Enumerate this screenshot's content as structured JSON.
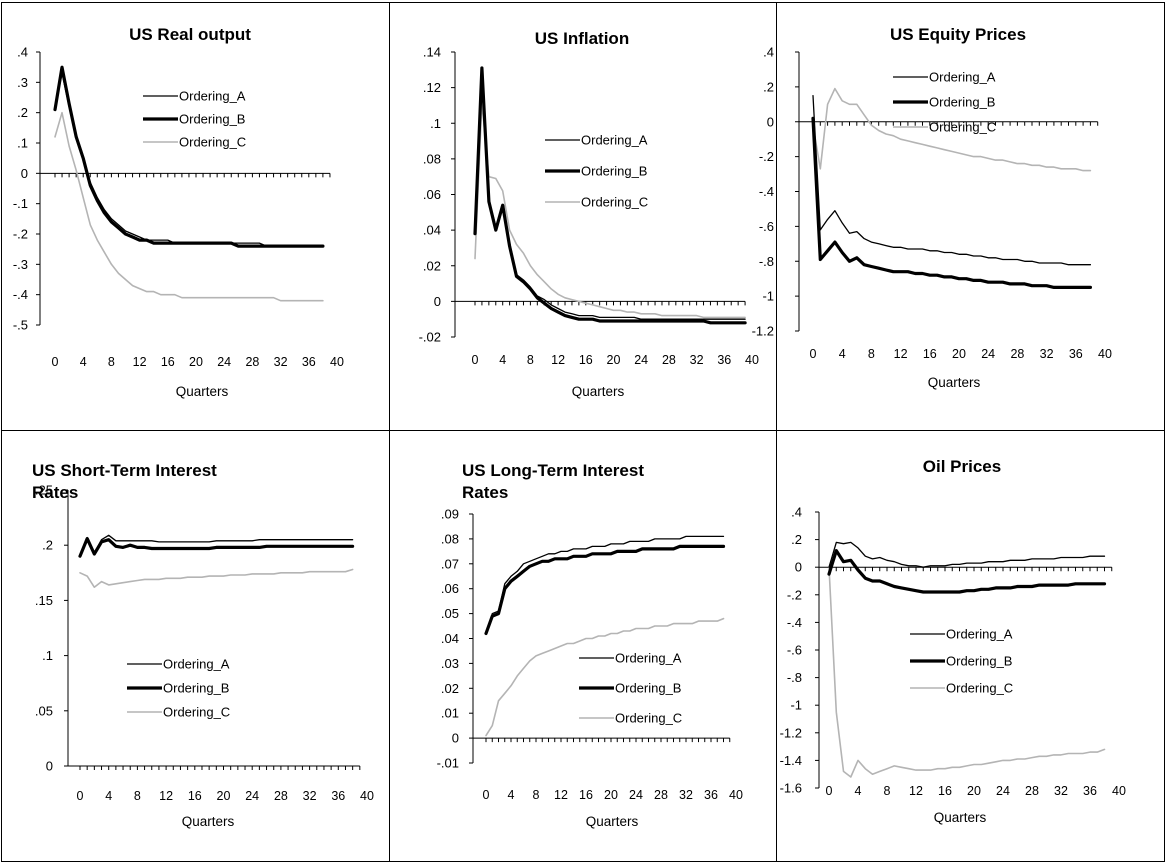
{
  "chart_data": [
    {
      "type": "line",
      "title": "US Real output",
      "xlabel": "Quarters",
      "ylabel": "",
      "ylim": [
        -0.5,
        0.4
      ],
      "yticks": [
        0.4,
        0.3,
        0.2,
        0.1,
        0,
        -0.1,
        -0.2,
        -0.3,
        -0.4,
        -0.5
      ],
      "xticks": [
        0,
        4,
        8,
        12,
        16,
        20,
        24,
        28,
        32,
        36,
        40
      ],
      "legend": "top-right",
      "series": [
        {
          "name": "Ordering_A",
          "color": "#000000",
          "values": [
            0.21,
            0.33,
            0.22,
            0.12,
            0.05,
            -0.03,
            -0.08,
            -0.12,
            -0.15,
            -0.17,
            -0.19,
            -0.2,
            -0.21,
            -0.22,
            -0.22,
            -0.22,
            -0.22,
            -0.23,
            -0.23,
            -0.23,
            -0.23,
            -0.23,
            -0.23,
            -0.23,
            -0.23,
            -0.23,
            -0.23,
            -0.23,
            -0.23,
            -0.23,
            -0.24,
            -0.24,
            -0.24,
            -0.24,
            -0.24,
            -0.24,
            -0.24,
            -0.24,
            -0.24
          ]
        },
        {
          "name": "Ordering_B",
          "color": "#000000",
          "values": [
            0.21,
            0.35,
            0.23,
            0.12,
            0.05,
            -0.04,
            -0.09,
            -0.13,
            -0.16,
            -0.18,
            -0.2,
            -0.21,
            -0.22,
            -0.22,
            -0.23,
            -0.23,
            -0.23,
            -0.23,
            -0.23,
            -0.23,
            -0.23,
            -0.23,
            -0.23,
            -0.23,
            -0.23,
            -0.23,
            -0.24,
            -0.24,
            -0.24,
            -0.24,
            -0.24,
            -0.24,
            -0.24,
            -0.24,
            -0.24,
            -0.24,
            -0.24,
            -0.24,
            -0.24
          ]
        },
        {
          "name": "Ordering_C",
          "color": "#b4b4b4",
          "values": [
            0.12,
            0.2,
            0.09,
            0.01,
            -0.08,
            -0.17,
            -0.22,
            -0.26,
            -0.3,
            -0.33,
            -0.35,
            -0.37,
            -0.38,
            -0.39,
            -0.39,
            -0.4,
            -0.4,
            -0.4,
            -0.41,
            -0.41,
            -0.41,
            -0.41,
            -0.41,
            -0.41,
            -0.41,
            -0.41,
            -0.41,
            -0.41,
            -0.41,
            -0.41,
            -0.41,
            -0.41,
            -0.42,
            -0.42,
            -0.42,
            -0.42,
            -0.42,
            -0.42,
            -0.42
          ]
        }
      ]
    },
    {
      "type": "line",
      "title": "US Inflation",
      "xlabel": "Quarters",
      "ylabel": "",
      "ylim": [
        -0.02,
        0.14
      ],
      "yticks": [
        0.14,
        0.12,
        0.1,
        0.08,
        0.06,
        0.04,
        0.02,
        0,
        -0.02
      ],
      "xticks": [
        0,
        4,
        8,
        12,
        16,
        20,
        24,
        28,
        32,
        36,
        40
      ],
      "legend": "right",
      "series": [
        {
          "name": "Ordering_A",
          "color": "#000000",
          "values": [
            0.038,
            0.128,
            0.057,
            0.042,
            0.053,
            0.033,
            0.015,
            0.012,
            0.008,
            0.003,
            0.001,
            -0.002,
            -0.004,
            -0.006,
            -0.007,
            -0.008,
            -0.008,
            -0.008,
            -0.009,
            -0.009,
            -0.009,
            -0.009,
            -0.009,
            -0.009,
            -0.01,
            -0.01,
            -0.01,
            -0.01,
            -0.01,
            -0.01,
            -0.01,
            -0.01,
            -0.01,
            -0.01,
            -0.01,
            -0.01,
            -0.01,
            -0.01,
            -0.01,
            -0.01
          ]
        },
        {
          "name": "Ordering_B",
          "color": "#000000",
          "values": [
            0.038,
            0.131,
            0.056,
            0.04,
            0.054,
            0.031,
            0.014,
            0.011,
            0.007,
            0.002,
            -0.001,
            -0.004,
            -0.006,
            -0.008,
            -0.009,
            -0.01,
            -0.01,
            -0.01,
            -0.011,
            -0.011,
            -0.011,
            -0.011,
            -0.011,
            -0.011,
            -0.011,
            -0.011,
            -0.011,
            -0.011,
            -0.011,
            -0.011,
            -0.011,
            -0.011,
            -0.011,
            -0.011,
            -0.012,
            -0.012,
            -0.012,
            -0.012,
            -0.012,
            -0.012
          ]
        },
        {
          "name": "Ordering_C",
          "color": "#b4b4b4",
          "values": [
            0.024,
            0.112,
            0.07,
            0.069,
            0.062,
            0.04,
            0.032,
            0.027,
            0.02,
            0.015,
            0.011,
            0.007,
            0.004,
            0.002,
            0.001,
            0.0,
            -0.001,
            -0.002,
            -0.003,
            -0.004,
            -0.005,
            -0.005,
            -0.006,
            -0.006,
            -0.007,
            -0.007,
            -0.007,
            -0.008,
            -0.008,
            -0.008,
            -0.008,
            -0.008,
            -0.008,
            -0.009,
            -0.009,
            -0.009,
            -0.009,
            -0.009,
            -0.009,
            -0.009
          ]
        }
      ]
    },
    {
      "type": "line",
      "title": "US Equity Prices",
      "xlabel": "Quarters",
      "ylabel": "",
      "ylim": [
        -1.2,
        0.4
      ],
      "yticks": [
        0.4,
        0.2,
        0,
        -0.2,
        -0.4,
        -0.6,
        -0.8,
        -1,
        -1.2
      ],
      "xticks": [
        0,
        4,
        8,
        12,
        16,
        20,
        24,
        28,
        32,
        36,
        40
      ],
      "legend": "top-right",
      "series": [
        {
          "name": "Ordering_A",
          "color": "#000000",
          "values": [
            0.15,
            -0.62,
            -0.56,
            -0.51,
            -0.58,
            -0.64,
            -0.63,
            -0.67,
            -0.69,
            -0.7,
            -0.71,
            -0.72,
            -0.72,
            -0.73,
            -0.73,
            -0.73,
            -0.74,
            -0.74,
            -0.75,
            -0.75,
            -0.76,
            -0.76,
            -0.77,
            -0.77,
            -0.78,
            -0.78,
            -0.79,
            -0.79,
            -0.79,
            -0.8,
            -0.8,
            -0.81,
            -0.81,
            -0.81,
            -0.81,
            -0.82,
            -0.82,
            -0.82,
            -0.82
          ]
        },
        {
          "name": "Ordering_B",
          "color": "#000000",
          "values": [
            0.02,
            -0.79,
            -0.74,
            -0.69,
            -0.75,
            -0.8,
            -0.78,
            -0.82,
            -0.83,
            -0.84,
            -0.85,
            -0.86,
            -0.86,
            -0.86,
            -0.87,
            -0.87,
            -0.88,
            -0.88,
            -0.89,
            -0.89,
            -0.9,
            -0.9,
            -0.91,
            -0.91,
            -0.92,
            -0.92,
            -0.92,
            -0.93,
            -0.93,
            -0.93,
            -0.94,
            -0.94,
            -0.94,
            -0.95,
            -0.95,
            -0.95,
            -0.95,
            -0.95,
            -0.95
          ]
        },
        {
          "name": "Ordering_C",
          "color": "#b4b4b4",
          "values": [
            -0.02,
            -0.27,
            0.1,
            0.19,
            0.12,
            0.1,
            0.1,
            0.04,
            -0.02,
            -0.05,
            -0.07,
            -0.08,
            -0.1,
            -0.11,
            -0.12,
            -0.13,
            -0.14,
            -0.15,
            -0.16,
            -0.17,
            -0.18,
            -0.19,
            -0.2,
            -0.2,
            -0.21,
            -0.22,
            -0.22,
            -0.23,
            -0.24,
            -0.24,
            -0.25,
            -0.25,
            -0.26,
            -0.26,
            -0.27,
            -0.27,
            -0.27,
            -0.28,
            -0.28
          ]
        }
      ]
    },
    {
      "type": "line",
      "title": "US Short-Term Interest Rates",
      "xlabel": "Quarters",
      "ylabel": "",
      "ylim": [
        0,
        0.25
      ],
      "yticks": [
        0.25,
        0.2,
        0.15,
        0.1,
        0.05,
        0
      ],
      "xticks": [
        0,
        4,
        8,
        12,
        16,
        20,
        24,
        28,
        32,
        36,
        40
      ],
      "legend": "bottom-right",
      "series": [
        {
          "name": "Ordering_A",
          "color": "#000000",
          "values": [
            0.19,
            0.207,
            0.193,
            0.205,
            0.209,
            0.204,
            0.204,
            0.204,
            0.204,
            0.204,
            0.204,
            0.203,
            0.203,
            0.203,
            0.203,
            0.203,
            0.203,
            0.203,
            0.203,
            0.204,
            0.204,
            0.204,
            0.204,
            0.204,
            0.204,
            0.205,
            0.205,
            0.205,
            0.205,
            0.205,
            0.205,
            0.205,
            0.205,
            0.205,
            0.205,
            0.205,
            0.205,
            0.205,
            0.205
          ]
        },
        {
          "name": "Ordering_B",
          "color": "#000000",
          "values": [
            0.19,
            0.206,
            0.192,
            0.203,
            0.205,
            0.199,
            0.198,
            0.2,
            0.198,
            0.198,
            0.197,
            0.197,
            0.197,
            0.197,
            0.197,
            0.197,
            0.197,
            0.197,
            0.197,
            0.198,
            0.198,
            0.198,
            0.198,
            0.198,
            0.198,
            0.198,
            0.199,
            0.199,
            0.199,
            0.199,
            0.199,
            0.199,
            0.199,
            0.199,
            0.199,
            0.199,
            0.199,
            0.199,
            0.199
          ]
        },
        {
          "name": "Ordering_C",
          "color": "#b4b4b4",
          "values": [
            0.175,
            0.172,
            0.162,
            0.167,
            0.164,
            0.165,
            0.166,
            0.167,
            0.168,
            0.169,
            0.169,
            0.169,
            0.17,
            0.17,
            0.17,
            0.171,
            0.171,
            0.171,
            0.172,
            0.172,
            0.172,
            0.173,
            0.173,
            0.173,
            0.174,
            0.174,
            0.174,
            0.174,
            0.175,
            0.175,
            0.175,
            0.175,
            0.176,
            0.176,
            0.176,
            0.176,
            0.176,
            0.176,
            0.178
          ]
        }
      ]
    },
    {
      "type": "line",
      "title": "US Long-Term Interest Rates",
      "xlabel": "Quarters",
      "ylabel": "",
      "ylim": [
        -0.01,
        0.09
      ],
      "yticks": [
        0.09,
        0.08,
        0.07,
        0.06,
        0.05,
        0.04,
        0.03,
        0.02,
        0.01,
        0,
        -0.01
      ],
      "xticks": [
        0,
        4,
        8,
        12,
        16,
        20,
        24,
        28,
        32,
        36,
        40
      ],
      "legend": "right",
      "series": [
        {
          "name": "Ordering_A",
          "color": "#000000",
          "values": [
            0.042,
            0.05,
            0.051,
            0.062,
            0.065,
            0.067,
            0.07,
            0.071,
            0.072,
            0.073,
            0.074,
            0.074,
            0.075,
            0.075,
            0.076,
            0.076,
            0.076,
            0.077,
            0.077,
            0.077,
            0.078,
            0.078,
            0.078,
            0.079,
            0.079,
            0.079,
            0.079,
            0.08,
            0.08,
            0.08,
            0.08,
            0.08,
            0.081,
            0.081,
            0.081,
            0.081,
            0.081,
            0.081,
            0.081
          ]
        },
        {
          "name": "Ordering_B",
          "color": "#000000",
          "values": [
            0.042,
            0.049,
            0.05,
            0.06,
            0.063,
            0.065,
            0.067,
            0.069,
            0.07,
            0.071,
            0.071,
            0.072,
            0.072,
            0.072,
            0.073,
            0.073,
            0.073,
            0.074,
            0.074,
            0.074,
            0.074,
            0.075,
            0.075,
            0.075,
            0.075,
            0.076,
            0.076,
            0.076,
            0.076,
            0.076,
            0.076,
            0.077,
            0.077,
            0.077,
            0.077,
            0.077,
            0.077,
            0.077,
            0.077
          ]
        },
        {
          "name": "Ordering_C",
          "color": "#b4b4b4",
          "values": [
            0.001,
            0.005,
            0.015,
            0.018,
            0.021,
            0.025,
            0.028,
            0.031,
            0.033,
            0.034,
            0.035,
            0.036,
            0.037,
            0.038,
            0.038,
            0.039,
            0.04,
            0.04,
            0.041,
            0.041,
            0.042,
            0.042,
            0.043,
            0.043,
            0.044,
            0.044,
            0.044,
            0.045,
            0.045,
            0.045,
            0.046,
            0.046,
            0.046,
            0.046,
            0.047,
            0.047,
            0.047,
            0.047,
            0.048
          ]
        }
      ]
    },
    {
      "type": "line",
      "title": "Oil Prices",
      "xlabel": "Quarters",
      "ylabel": "",
      "ylim": [
        -1.6,
        0.4
      ],
      "yticks": [
        0.4,
        0.2,
        0,
        -0.2,
        -0.4,
        -0.6,
        -0.8,
        -1,
        -1.2,
        -1.4,
        -1.6
      ],
      "xticks": [
        0,
        4,
        8,
        12,
        16,
        20,
        24,
        28,
        32,
        36,
        40
      ],
      "legend": "right",
      "series": [
        {
          "name": "Ordering_A",
          "color": "#000000",
          "values": [
            0.0,
            0.18,
            0.17,
            0.18,
            0.14,
            0.08,
            0.06,
            0.07,
            0.05,
            0.04,
            0.02,
            0.01,
            0.01,
            0.0,
            0.01,
            0.01,
            0.01,
            0.02,
            0.02,
            0.03,
            0.03,
            0.03,
            0.04,
            0.04,
            0.04,
            0.05,
            0.05,
            0.05,
            0.06,
            0.06,
            0.06,
            0.06,
            0.07,
            0.07,
            0.07,
            0.07,
            0.08,
            0.08,
            0.08
          ]
        },
        {
          "name": "Ordering_B",
          "color": "#000000",
          "values": [
            -0.05,
            0.12,
            0.04,
            0.05,
            -0.02,
            -0.08,
            -0.1,
            -0.1,
            -0.12,
            -0.14,
            -0.15,
            -0.16,
            -0.17,
            -0.18,
            -0.18,
            -0.18,
            -0.18,
            -0.18,
            -0.18,
            -0.17,
            -0.17,
            -0.16,
            -0.16,
            -0.15,
            -0.15,
            -0.15,
            -0.14,
            -0.14,
            -0.14,
            -0.13,
            -0.13,
            -0.13,
            -0.13,
            -0.13,
            -0.12,
            -0.12,
            -0.12,
            -0.12,
            -0.12
          ]
        },
        {
          "name": "Ordering_C",
          "color": "#b4b4b4",
          "values": [
            0.0,
            -1.05,
            -1.48,
            -1.52,
            -1.4,
            -1.46,
            -1.5,
            -1.48,
            -1.46,
            -1.44,
            -1.45,
            -1.46,
            -1.47,
            -1.47,
            -1.47,
            -1.46,
            -1.46,
            -1.45,
            -1.45,
            -1.44,
            -1.43,
            -1.43,
            -1.42,
            -1.41,
            -1.4,
            -1.4,
            -1.39,
            -1.39,
            -1.38,
            -1.37,
            -1.37,
            -1.36,
            -1.36,
            -1.35,
            -1.35,
            -1.35,
            -1.34,
            -1.34,
            -1.32
          ]
        }
      ]
    }
  ]
}
